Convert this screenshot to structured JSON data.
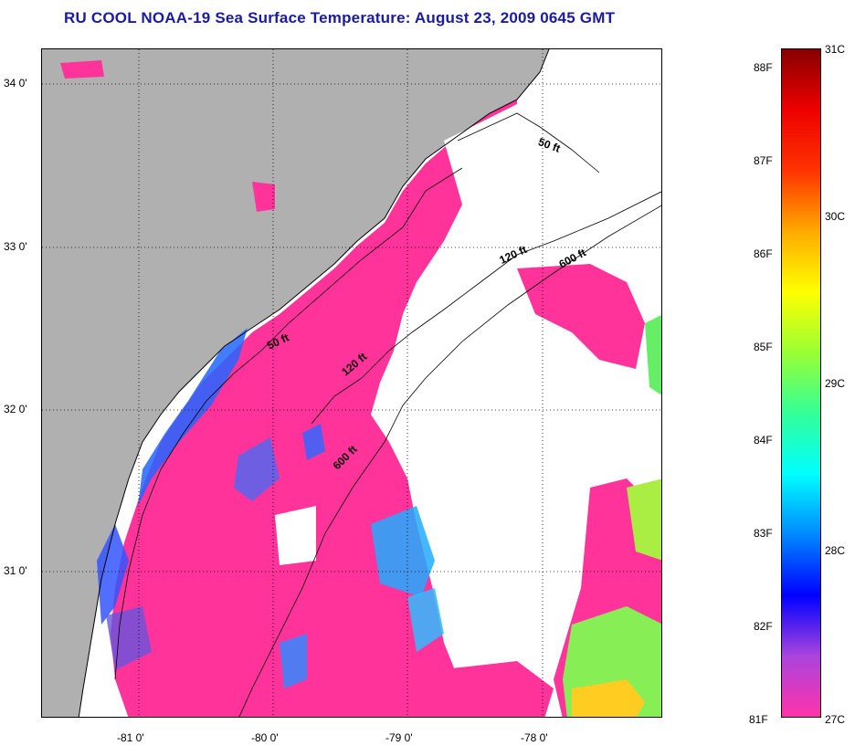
{
  "title": "RU COOL  NOAA-19  Sea Surface Temperature:  August 23, 2009 0645 GMT",
  "map": {
    "lon_range": [
      -81.7,
      -77.2
    ],
    "lat_range": [
      30.15,
      34.2
    ],
    "lat_ticks": [
      {
        "value": 34,
        "label": "34 0'"
      },
      {
        "value": 33,
        "label": "33 0'"
      },
      {
        "value": 32,
        "label": "32 0'"
      },
      {
        "value": 31,
        "label": "31 0'"
      }
    ],
    "lon_ticks": [
      {
        "value": -81,
        "label": "-81 0'"
      },
      {
        "value": -80,
        "label": "-80 0'"
      },
      {
        "value": -79,
        "label": "-79 0'"
      },
      {
        "value": -78,
        "label": "-78 0'"
      }
    ],
    "grid": "dotted",
    "land_color": "#b0b0b0",
    "cloud_color": "#ffffff",
    "warm_water_color": "#ff3399",
    "isobath_labels": [
      {
        "text": "50 ft",
        "name": "isobath-50ft-north"
      },
      {
        "text": "120 ft",
        "name": "isobath-120ft-north"
      },
      {
        "text": "600 ft",
        "name": "isobath-600ft-north"
      },
      {
        "text": "50 ft",
        "name": "isobath-50ft-south"
      },
      {
        "text": "120 ft",
        "name": "isobath-120ft-south"
      },
      {
        "text": "600 ft",
        "name": "isobath-600ft-south"
      }
    ]
  },
  "colorbar": {
    "min_c": 27,
    "max_c": 31,
    "colors": [
      "#ff33aa",
      "#aa44dd",
      "#0000ff",
      "#0088ff",
      "#00ffff",
      "#33ff99",
      "#99ff33",
      "#ffff00",
      "#ffaa00",
      "#ff3300",
      "#ee0000",
      "#880000"
    ],
    "fahrenheit_labels": [
      "88F",
      "87F",
      "86F",
      "85F",
      "84F",
      "83F",
      "82F",
      "81F"
    ],
    "fahrenheit_values": [
      88,
      87,
      86,
      85,
      84,
      83,
      82,
      81
    ],
    "celsius_labels": [
      "31C",
      "30C",
      "29C",
      "28C",
      "27C"
    ],
    "celsius_values": [
      31,
      30,
      29,
      28,
      27
    ]
  }
}
